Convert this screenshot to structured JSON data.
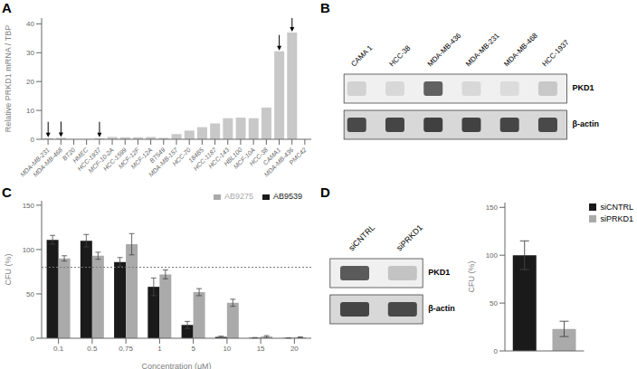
{
  "chart_data": [
    {
      "type": "bar",
      "title": "A",
      "categories": [
        "MDA-MB-231",
        "MDA-MB-468",
        "BT20",
        "HMEC",
        "HCC-1937",
        "MCF-10-2A",
        "HCC-1599",
        "MCF-12F",
        "MCF-12A",
        "BT549",
        "MDA-MB-157",
        "HCC-70",
        "184B5",
        "HCC-1187",
        "HCC-143",
        "HBL100",
        "MCF-10A",
        "HCC-38",
        "CAMA1",
        "MDA-MB-436",
        "PMC42"
      ],
      "values": [
        0.4,
        0.5,
        0.05,
        0.05,
        0.4,
        0.8,
        0.7,
        0.7,
        0.8,
        0.5,
        1.8,
        3.0,
        4.2,
        5.5,
        7.3,
        7.5,
        7.3,
        11.0,
        30.5,
        37.0,
        0.0
      ],
      "arrows": [
        "MDA-MB-231",
        "MDA-MB-468",
        "HCC-1937",
        "CAMA1",
        "MDA-MB-436"
      ],
      "color": "#c8c8c8",
      "ylabel": "Relative PRKD1 mRNA / TBP",
      "ylim": [
        0,
        42
      ],
      "yticks": [
        0,
        10,
        20,
        30,
        40
      ]
    },
    {
      "type": "blot",
      "title": "B",
      "categories": [
        "CAMA 1",
        "HCC-38",
        "MDA-MB-436",
        "MDA-MB-231",
        "MDA-MB-468",
        "HCC-1937"
      ],
      "series": [
        {
          "name": "PKD1",
          "values": [
            0.15,
            0.12,
            0.72,
            0.12,
            0.1,
            0.2
          ]
        },
        {
          "name": "β-actin",
          "values": [
            0.8,
            0.82,
            0.85,
            0.84,
            0.82,
            0.8
          ]
        }
      ]
    },
    {
      "type": "bar",
      "title": "C",
      "categories": [
        "0.1",
        "0.5",
        "0.75",
        "1",
        "5",
        "10",
        "15",
        "20"
      ],
      "series": [
        {
          "name": "AB9539",
          "color": "#1a1a1a",
          "values": [
            111,
            110,
            86,
            58,
            15,
            1.5,
            0.5,
            0.3
          ],
          "errors": [
            5,
            7,
            5,
            10,
            4,
            0.8,
            0.3,
            0.2
          ]
        },
        {
          "name": "AB9275",
          "color": "#aaaaaa",
          "values": [
            90,
            93,
            106,
            72,
            52,
            40,
            2,
            1
          ],
          "errors": [
            3,
            4,
            12,
            5,
            4,
            4,
            1,
            0.5
          ]
        }
      ],
      "hline": 80,
      "xlabel": "Concentration (μM)",
      "ylabel": "CFU (%)",
      "ylim": [
        0,
        155
      ],
      "yticks": [
        0,
        50,
        100,
        150
      ],
      "legend": "upper right"
    },
    {
      "type": "blot",
      "title": "D",
      "categories": [
        "siCNTRL",
        "siPRKD1"
      ],
      "series": [
        {
          "name": "PKD1",
          "values": [
            0.75,
            0.22
          ]
        },
        {
          "name": "β-actin",
          "values": [
            0.82,
            0.8
          ]
        }
      ]
    },
    {
      "type": "bar",
      "categories": [
        "siCNTRL",
        "siPRKD1"
      ],
      "values": [
        100,
        23
      ],
      "errors": [
        15,
        8
      ],
      "colors": [
        "#1a1a1a",
        "#aaaaaa"
      ],
      "ylabel": "CFU (%)",
      "ylim": [
        0,
        155
      ],
      "yticks": [
        0,
        50,
        100,
        150
      ],
      "tick_labels": "y",
      "legend": "upper right"
    }
  ]
}
